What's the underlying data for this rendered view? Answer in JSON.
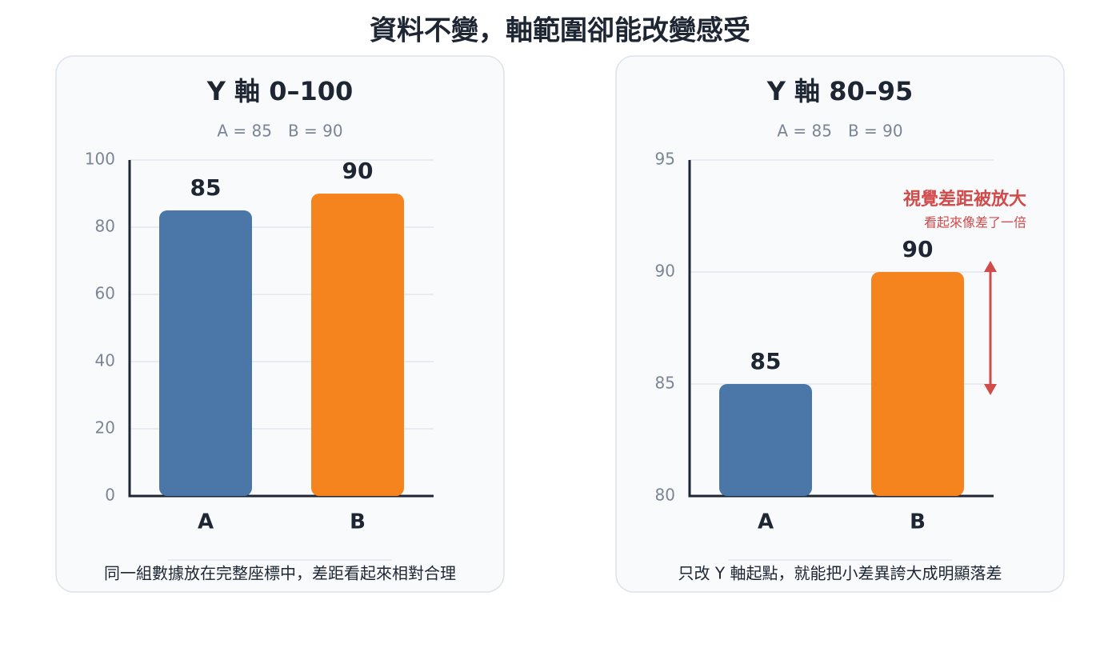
{
  "title": "資料不變，軸範圍卻能改變感受",
  "chart_data": [
    {
      "type": "bar",
      "title": "Y 軸 0–100",
      "subtitle": "A = 85　B = 90",
      "categories": [
        "A",
        "B"
      ],
      "values": [
        85,
        90
      ],
      "colors": [
        "#4a76a8",
        "#f5841f"
      ],
      "ylim": [
        0,
        100
      ],
      "yticks": [
        0,
        20,
        40,
        60,
        80,
        100
      ],
      "grid": true,
      "caption": "同一組數據放在完整座標中，差距看起來相對合理"
    },
    {
      "type": "bar",
      "title": "Y 軸 80–95",
      "subtitle": "A = 85　B = 90",
      "categories": [
        "A",
        "B"
      ],
      "values": [
        85,
        90
      ],
      "colors": [
        "#4a76a8",
        "#f5841f"
      ],
      "ylim": [
        80,
        95
      ],
      "yticks": [
        80,
        85,
        90,
        95
      ],
      "grid": true,
      "annotation": {
        "title": "視覺差距被放大",
        "text": "看起來像差了一倍",
        "color": "#d14b4b"
      },
      "caption": "只改 Y 軸起點，就能把小差異誇大成明顯落差"
    }
  ]
}
